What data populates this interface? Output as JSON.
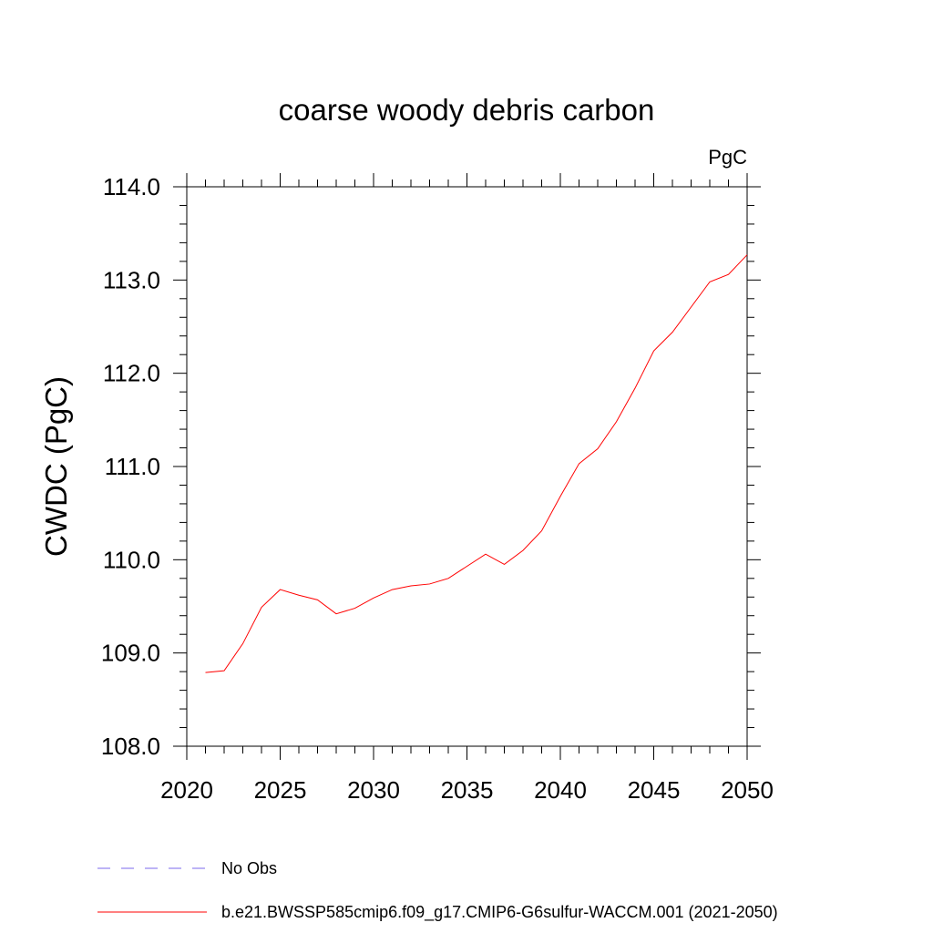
{
  "chart_data": {
    "type": "line",
    "title": "coarse woody debris carbon",
    "units": "PgC",
    "ylabel": "CWDC  (PgC)",
    "xlabel": "",
    "xlim": [
      2020,
      2050
    ],
    "ylim": [
      108.0,
      114.0
    ],
    "x_ticks": [
      2020,
      2025,
      2030,
      2035,
      2040,
      2045,
      2050
    ],
    "x_tick_labels": [
      "2020",
      "2025",
      "2030",
      "2035",
      "2040",
      "2045",
      "2050"
    ],
    "y_ticks": [
      108,
      109,
      110,
      111,
      112,
      113,
      114
    ],
    "y_tick_labels": [
      "108.0",
      "109.0",
      "110.0",
      "111.0",
      "112.0",
      "113.0",
      "114.0"
    ],
    "grid": false,
    "legend_position": "bottom",
    "series": [
      {
        "name": "b.e21.BWSSP585cmip6.f09_g17.CMIP6-G6sulfur-WACCM.001 (2021-2050)",
        "color": "#ff0000",
        "style": "solid",
        "x": [
          2021,
          2022,
          2023,
          2024,
          2025,
          2026,
          2027,
          2028,
          2029,
          2030,
          2031,
          2032,
          2033,
          2034,
          2035,
          2036,
          2037,
          2038,
          2039,
          2040,
          2041,
          2042,
          2043,
          2044,
          2045,
          2046,
          2047,
          2048,
          2049,
          2050
        ],
        "y": [
          108.79,
          108.81,
          109.1,
          109.49,
          109.68,
          109.62,
          109.57,
          109.42,
          109.48,
          109.59,
          109.68,
          109.72,
          109.74,
          109.8,
          109.93,
          110.06,
          109.95,
          110.1,
          110.31,
          110.68,
          111.03,
          111.19,
          111.48,
          111.84,
          112.24,
          112.44,
          112.71,
          112.98,
          113.06,
          113.27
        ]
      }
    ],
    "legend": [
      {
        "label": "No Obs",
        "color": "#7b68ee",
        "style": "dashed"
      },
      {
        "label": "b.e21.BWSSP585cmip6.f09_g17.CMIP6-G6sulfur-WACCM.001 (2021-2050)",
        "color": "#ff0000",
        "style": "solid"
      }
    ]
  }
}
